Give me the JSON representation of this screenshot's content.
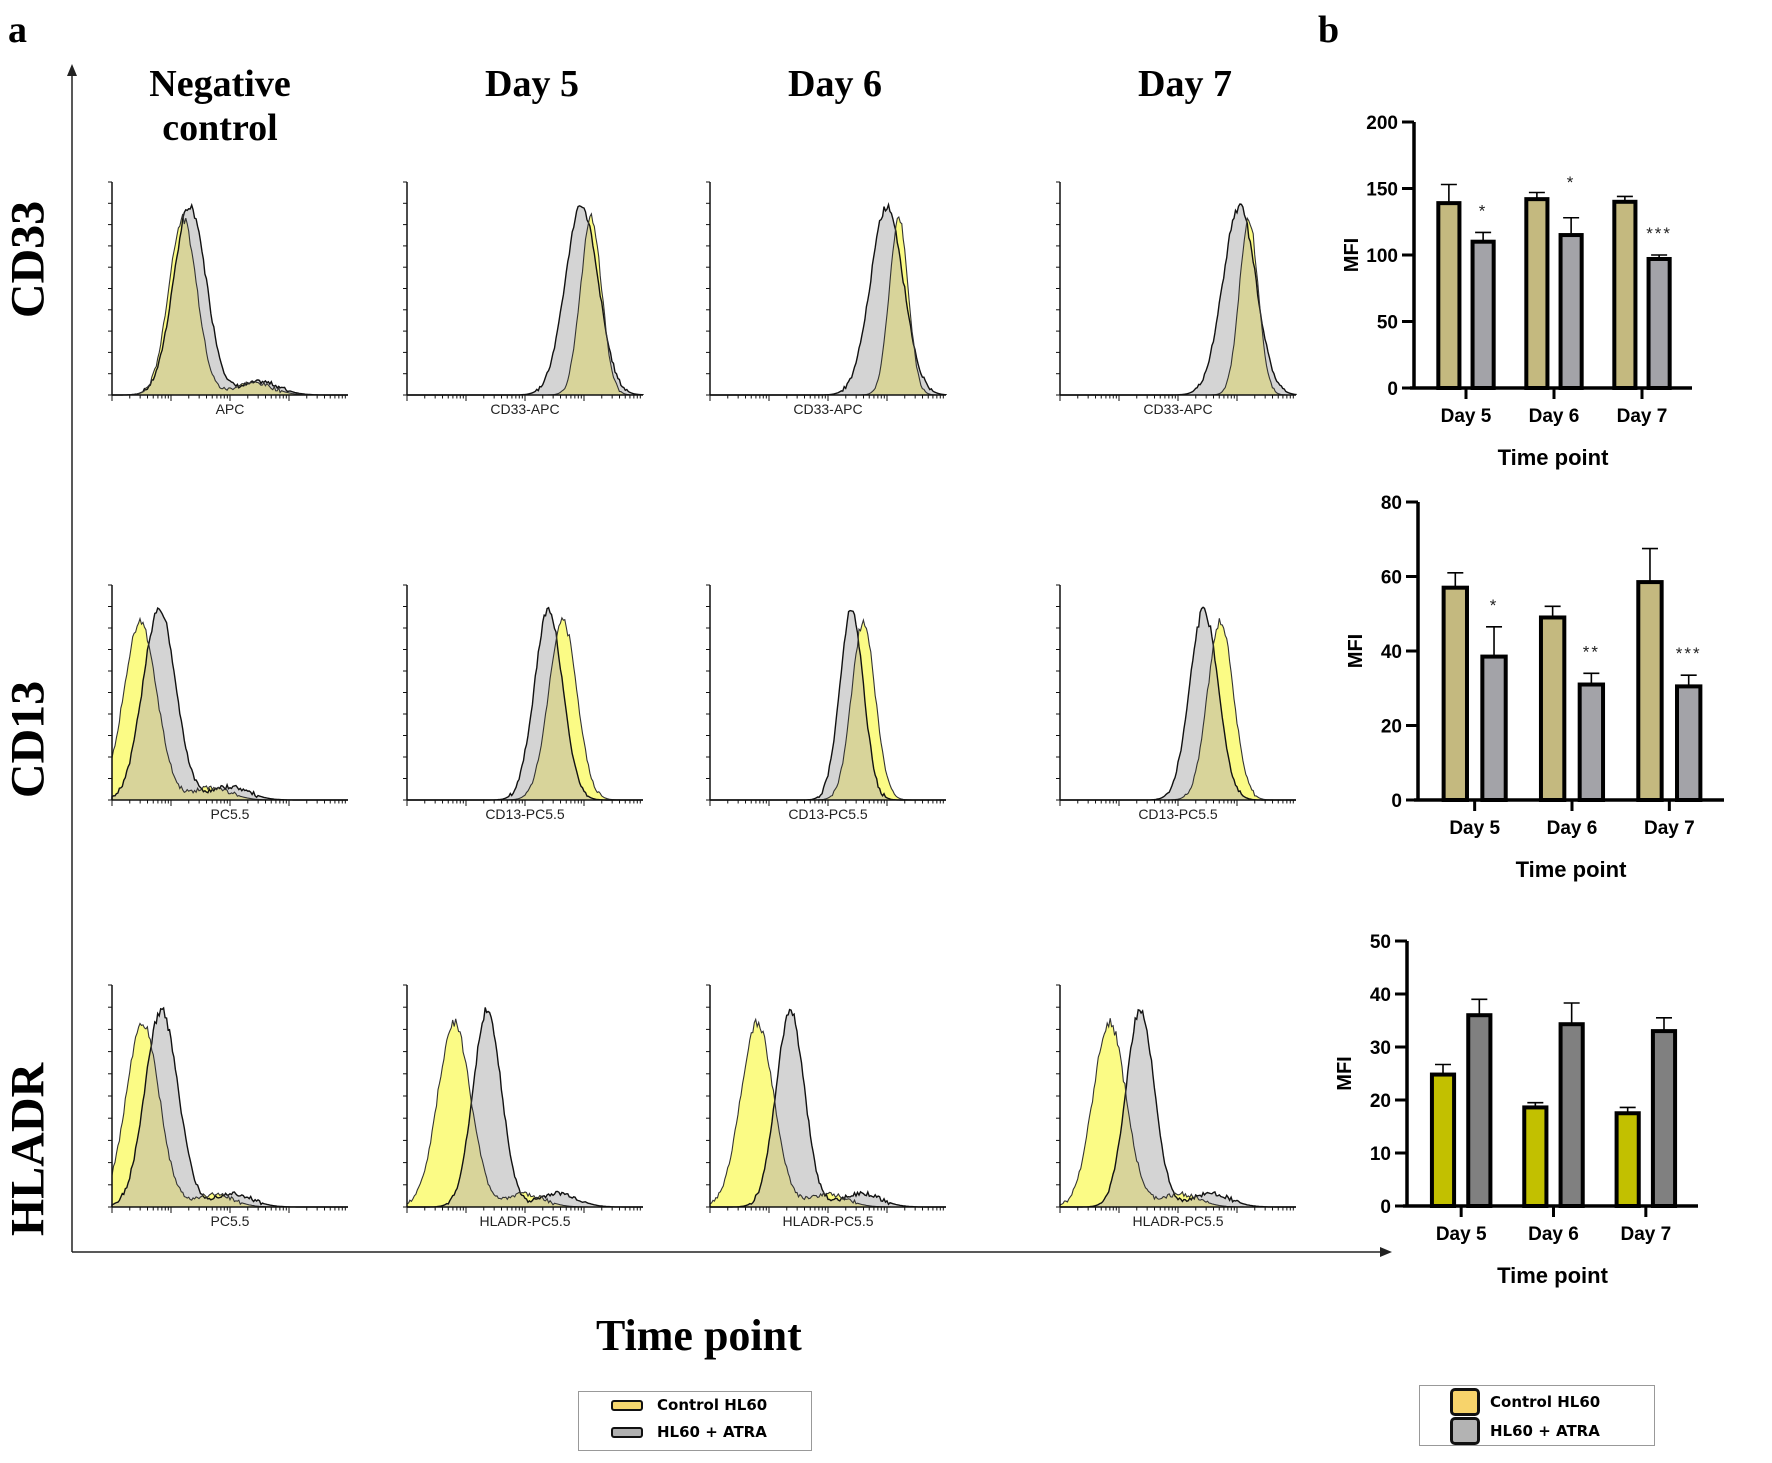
{
  "panel_a": {
    "letter": "a",
    "column_headers": [
      "Negative\ncontrol",
      "Day 5",
      "Day 6",
      "Day 7"
    ],
    "row_headers": [
      "CD33",
      "CD13",
      "HLADR"
    ],
    "x_axis_title": "Time point",
    "histogram_xlabels": [
      [
        "APC",
        "CD33-APC",
        "CD33-APC",
        "CD33-APC"
      ],
      [
        "PC5.5",
        "CD13-PC5.5",
        "CD13-PC5.5",
        "CD13-PC5.5"
      ],
      [
        "PC5.5",
        "HLADR-PC5.5",
        "HLADR-PC5.5",
        "HLADR-PC5.5"
      ]
    ],
    "histogram_peaks_note": "relative peak positions on log axis (0-1) for control and ATRA populations",
    "histograms": [
      [
        {
          "control": 0.3,
          "atra": 0.33,
          "control_w": 0.06,
          "atra_w": 0.07,
          "tail": true
        },
        {
          "control": 0.78,
          "atra": 0.74,
          "control_w": 0.045,
          "atra_w": 0.07
        },
        {
          "control": 0.8,
          "atra": 0.75,
          "control_w": 0.04,
          "atra_w": 0.07
        },
        {
          "control": 0.8,
          "atra": 0.76,
          "control_w": 0.04,
          "atra_w": 0.07
        }
      ],
      [
        {
          "control": 0.12,
          "atra": 0.2,
          "control_w": 0.07,
          "atra_w": 0.07,
          "tail": true
        },
        {
          "control": 0.66,
          "atra": 0.6,
          "control_w": 0.06,
          "atra_w": 0.06
        },
        {
          "control": 0.65,
          "atra": 0.6,
          "control_w": 0.05,
          "atra_w": 0.05
        },
        {
          "control": 0.68,
          "atra": 0.61,
          "control_w": 0.055,
          "atra_w": 0.06
        }
      ],
      [
        {
          "control": 0.13,
          "atra": 0.21,
          "control_w": 0.07,
          "atra_w": 0.07,
          "tail": true
        },
        {
          "control": 0.2,
          "atra": 0.34,
          "control_w": 0.07,
          "atra_w": 0.06,
          "tail": true
        },
        {
          "control": 0.2,
          "atra": 0.34,
          "control_w": 0.07,
          "atra_w": 0.06,
          "tail": true
        },
        {
          "control": 0.21,
          "atra": 0.34,
          "control_w": 0.07,
          "atra_w": 0.06,
          "tail": true
        }
      ]
    ],
    "legend": [
      {
        "label": "Control HL60",
        "color": "#f5d76e"
      },
      {
        "label": "HL60 + ATRA",
        "color": "#b0b0b0"
      }
    ]
  },
  "panel_b": {
    "letter": "b",
    "legend": [
      {
        "label": "Control HL60",
        "color": "#f7d36b"
      },
      {
        "label": "HL60 + ATRA",
        "color": "#b3b3b3"
      }
    ]
  },
  "colors": {
    "control_fill_hist": "#fafa70",
    "overlap_fill_hist": "#d8d49a",
    "atra_fill_hist": "#d4d4d4",
    "control_bar_cd": "#c4b97f",
    "atra_bar_cd": "#a3a3a8",
    "control_bar_hladr": "#c2c000",
    "atra_bar_hladr": "#808080"
  },
  "chart_data": [
    {
      "type": "bar",
      "marker": "CD33",
      "title": "",
      "xlabel": "Time point",
      "ylabel": "MFI",
      "ylim": [
        0,
        200
      ],
      "yticks": [
        0,
        50,
        100,
        150,
        200
      ],
      "categories": [
        "Day 5",
        "Day 6",
        "Day 7"
      ],
      "series": [
        {
          "name": "Control HL60",
          "values": [
            139,
            142,
            140
          ],
          "error_upper": [
            153,
            147,
            144
          ]
        },
        {
          "name": "HL60 + ATRA",
          "values": [
            110,
            115,
            97
          ],
          "error_upper": [
            117,
            128,
            100
          ]
        }
      ],
      "significance": [
        "*",
        "*",
        "***"
      ]
    },
    {
      "type": "bar",
      "marker": "CD13",
      "title": "",
      "xlabel": "Time point",
      "ylabel": "MFI",
      "ylim": [
        0,
        80
      ],
      "yticks": [
        0,
        20,
        40,
        60,
        80
      ],
      "categories": [
        "Day 5",
        "Day 6",
        "Day 7"
      ],
      "series": [
        {
          "name": "Control HL60",
          "values": [
            57,
            49,
            58.5
          ],
          "error_upper": [
            61,
            52,
            67.5
          ]
        },
        {
          "name": "HL60 + ATRA",
          "values": [
            38.5,
            31,
            30.5
          ],
          "error_upper": [
            46.5,
            34,
            33.5
          ]
        }
      ],
      "significance": [
        "*",
        "**",
        "***"
      ]
    },
    {
      "type": "bar",
      "marker": "HLADR",
      "title": "",
      "xlabel": "Time point",
      "ylabel": "MFI",
      "ylim": [
        0,
        50
      ],
      "yticks": [
        0,
        10,
        20,
        30,
        40,
        50
      ],
      "categories": [
        "Day 5",
        "Day 6",
        "Day 7"
      ],
      "series": [
        {
          "name": "Control HL60",
          "values": [
            24.8,
            18.6,
            17.5
          ],
          "error_upper": [
            26.7,
            19.5,
            18.6
          ]
        },
        {
          "name": "HL60 + ATRA",
          "values": [
            36,
            34.3,
            33
          ],
          "error_upper": [
            39,
            38.3,
            35.5
          ]
        }
      ],
      "significance": [
        "",
        "",
        ""
      ]
    }
  ]
}
